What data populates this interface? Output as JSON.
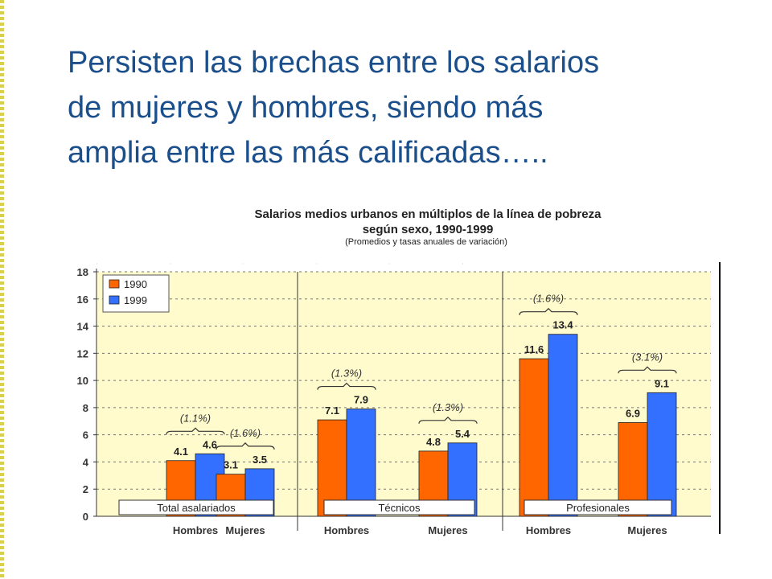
{
  "headline": [
    "Persisten las brechas entre los salarios",
    "de mujeres y hombres, siendo más",
    "amplia entre las más calificadas….."
  ],
  "chart_data": {
    "type": "bar",
    "title": "Salarios medios urbanos en múltiplos de la línea de pobreza",
    "title_line2": "según sexo, 1990-1999",
    "subtitle": "(Promedios y tasas anuales de variación)",
    "ylim": [
      0,
      18
    ],
    "yticks": [
      "0",
      "2",
      "4",
      "6",
      "8",
      "10",
      "12",
      "14",
      "16",
      "18"
    ],
    "categories": [
      "Hombres",
      "Mujeres",
      "Hombres",
      "Mujeres",
      "Hombres",
      "Mujeres"
    ],
    "groups": [
      "Total asalariados",
      "Técnicos",
      "Profesionales"
    ],
    "series": [
      {
        "name": "1990",
        "color": "#ff6600",
        "values": [
          4.1,
          3.1,
          7.1,
          4.8,
          11.6,
          6.9
        ],
        "labels": [
          "4.1",
          "3.1",
          "7.1",
          "4.8",
          "11.6",
          "6.9"
        ]
      },
      {
        "name": "1999",
        "color": "#3370ff",
        "values": [
          4.6,
          3.5,
          7.9,
          5.4,
          13.4,
          9.1
        ],
        "labels": [
          "4.6",
          "3.5",
          "7.9",
          "5.4",
          "13.4",
          "9.1"
        ]
      }
    ],
    "variation_labels": [
      "(1.1%)",
      "(1.6%)",
      "(1.3%)",
      "(1.3%)",
      "(1.6%)",
      "(3.1%)"
    ],
    "legend_position": "top-left",
    "grid": true,
    "plot_background": "#fffbcc"
  }
}
